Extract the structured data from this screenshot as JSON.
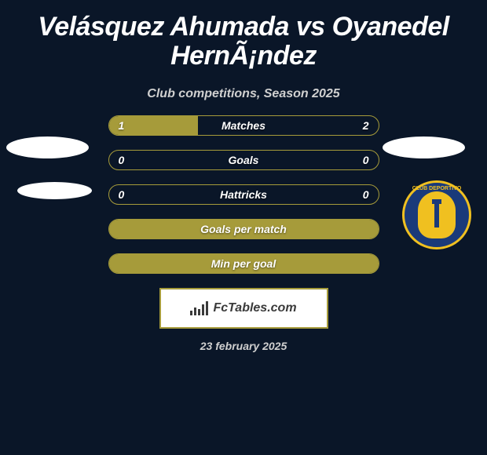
{
  "title": "Velásquez Ahumada vs Oyanedel HernÃ¡ndez",
  "subtitle": "Club competitions, Season 2025",
  "colors": {
    "background": "#0a1628",
    "accent": "#a69b3a",
    "text_primary": "#ffffff",
    "text_secondary": "#d0d0d0",
    "badge_bg": "#ffffff",
    "badge_text": "#3a3a3a",
    "club_blue": "#1a3a7a",
    "club_gold": "#f0c020"
  },
  "stats": [
    {
      "label": "Matches",
      "left_value": "1",
      "right_value": "2",
      "left_fill_pct": 33
    },
    {
      "label": "Goals",
      "left_value": "0",
      "right_value": "0",
      "left_fill_pct": 0
    },
    {
      "label": "Hattricks",
      "left_value": "0",
      "right_value": "0",
      "left_fill_pct": 0
    },
    {
      "label": "Goals per match",
      "left_value": "",
      "right_value": "",
      "left_fill_pct": 100
    },
    {
      "label": "Min per goal",
      "left_value": "",
      "right_value": "",
      "left_fill_pct": 100
    }
  ],
  "footer_brand": "FcTables.com",
  "date": "23 february 2025",
  "club_badge_text": "CLUB DEPORTIVO"
}
